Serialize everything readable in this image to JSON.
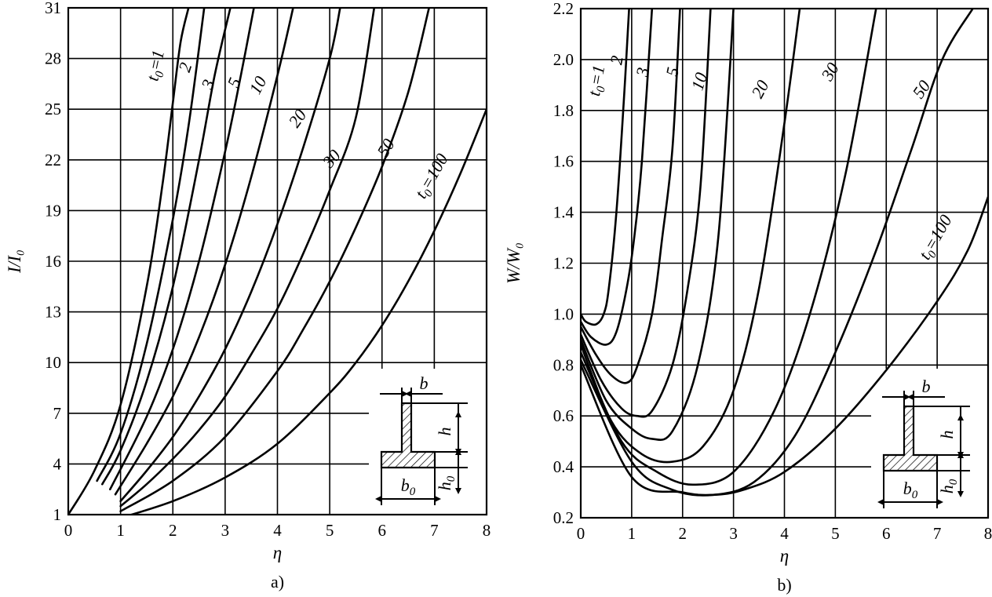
{
  "chart_data": [
    {
      "type": "line",
      "caption": "a)",
      "xlabel": "η",
      "ylabel": "I/I₀",
      "xlim": [
        0,
        8
      ],
      "ylim": [
        1,
        31
      ],
      "xticks": [
        0,
        1,
        2,
        3,
        4,
        5,
        6,
        7,
        8
      ],
      "yticks": [
        1,
        4,
        7,
        10,
        13,
        16,
        19,
        22,
        25,
        28,
        31
      ],
      "grid": true,
      "series": [
        {
          "name": "t₀=1",
          "label": "t₀=1",
          "x": [
            0,
            0.5,
            1,
            1.5,
            1.8,
            2.0,
            2.15,
            2.3
          ],
          "y": [
            1,
            3.6,
            7.5,
            14.5,
            20.5,
            25.4,
            29,
            31
          ]
        },
        {
          "name": "2",
          "label": "2",
          "x": [
            0.55,
            1,
            1.5,
            2,
            2.3,
            2.6
          ],
          "y": [
            3.0,
            5.8,
            11.1,
            18.5,
            24,
            31
          ]
        },
        {
          "name": "3",
          "label": "3",
          "x": [
            0.65,
            1,
            1.5,
            2,
            2.5,
            2.8,
            3.1
          ],
          "y": [
            2.8,
            4.8,
            8.9,
            14.5,
            22,
            27,
            31
          ]
        },
        {
          "name": "5",
          "label": "5",
          "x": [
            0.8,
            1.5,
            2,
            2.5,
            3,
            3.3,
            3.55
          ],
          "y": [
            2.5,
            6.8,
            10.8,
            16,
            22.5,
            27,
            31
          ]
        },
        {
          "name": "10",
          "label": "10",
          "x": [
            0.9,
            1.5,
            2,
            2.5,
            3,
            3.5,
            4.0,
            4.3
          ],
          "y": [
            2.2,
            5.2,
            8.0,
            11.5,
            15.8,
            21,
            27,
            31
          ]
        },
        {
          "name": "20",
          "label": "20",
          "x": [
            1,
            1.5,
            2,
            2.5,
            3,
            3.5,
            4,
            4.5,
            5.0,
            5.2
          ],
          "y": [
            1.8,
            3.6,
            5.6,
            8.0,
            10.8,
            14.2,
            18.2,
            22.8,
            28,
            31
          ]
        },
        {
          "name": "30",
          "label": "30",
          "x": [
            1,
            1.5,
            2,
            2.5,
            3,
            3.5,
            4,
            4.5,
            5,
            5.5,
            5.85
          ],
          "y": [
            1.5,
            2.8,
            4.3,
            6.0,
            8.0,
            10.5,
            13.2,
            16.5,
            20.2,
            24.5,
            31
          ]
        },
        {
          "name": "50",
          "label": "50",
          "x": [
            1,
            2,
            3,
            4,
            4.5,
            5,
            5.5,
            6,
            6.5,
            6.9
          ],
          "y": [
            1.2,
            3.0,
            5.6,
            9.5,
            12,
            14.8,
            18,
            21.6,
            26,
            31
          ]
        },
        {
          "name": "t₀=100",
          "label": "t₀=100",
          "x": [
            1,
            2,
            3,
            4,
            5,
            5.5,
            6,
            6.5,
            7,
            7.5,
            8
          ],
          "y": [
            0.8,
            1.8,
            3.2,
            5.2,
            8.2,
            10,
            12.2,
            14.8,
            17.8,
            21.2,
            25
          ]
        }
      ],
      "inset": {
        "labels": [
          "b",
          "h",
          "b₀",
          "h₀"
        ]
      }
    },
    {
      "type": "line",
      "caption": "b)",
      "xlabel": "η",
      "ylabel": "W/W₀",
      "xlim": [
        0,
        8
      ],
      "ylim": [
        0.2,
        2.2
      ],
      "xticks": [
        0,
        1,
        2,
        3,
        4,
        5,
        6,
        7,
        8
      ],
      "yticks": [
        "0.2",
        "0.4",
        "0.6",
        "0.8",
        "1.0",
        "1.2",
        "1.4",
        "1.6",
        "1.8",
        "2.0",
        "2.2"
      ],
      "grid": true,
      "series": [
        {
          "name": "t₀=1",
          "label": "t₀=1",
          "x": [
            0,
            0.1,
            0.3,
            0.45,
            0.55,
            0.7,
            0.85,
            0.95
          ],
          "y": [
            1.0,
            0.97,
            0.96,
            1.0,
            1.1,
            1.4,
            1.85,
            2.2
          ]
        },
        {
          "name": "2",
          "label": "2",
          "x": [
            0,
            0.2,
            0.5,
            0.7,
            0.9,
            1.05,
            1.2,
            1.4
          ],
          "y": [
            0.97,
            0.91,
            0.88,
            0.93,
            1.1,
            1.3,
            1.6,
            2.2
          ]
        },
        {
          "name": "3",
          "label": "3",
          "x": [
            0,
            0.3,
            0.6,
            0.9,
            1.1,
            1.4,
            1.6,
            1.8,
            1.95
          ],
          "y": [
            0.95,
            0.84,
            0.76,
            0.73,
            0.79,
            1.0,
            1.3,
            1.65,
            2.2
          ]
        },
        {
          "name": "5",
          "label": "5",
          "x": [
            0,
            0.4,
            0.8,
            1.1,
            1.4,
            1.8,
            2.1,
            2.35,
            2.55
          ],
          "y": [
            0.92,
            0.74,
            0.63,
            0.6,
            0.62,
            0.8,
            1.1,
            1.5,
            2.2
          ]
        },
        {
          "name": "10",
          "label": "10",
          "x": [
            0,
            0.5,
            1.0,
            1.4,
            1.8,
            2.3,
            2.7,
            3.0
          ],
          "y": [
            0.9,
            0.66,
            0.55,
            0.51,
            0.54,
            0.8,
            1.3,
            2.2
          ]
        },
        {
          "name": "20",
          "label": "20",
          "x": [
            0,
            0.6,
            1.2,
            1.8,
            2.4,
            3.0,
            3.5,
            4.0,
            4.3
          ],
          "y": [
            0.88,
            0.58,
            0.45,
            0.42,
            0.48,
            0.7,
            1.1,
            1.75,
            2.2
          ]
        },
        {
          "name": "30",
          "label": "30",
          "x": [
            0,
            0.8,
            1.5,
            2.2,
            3.0,
            3.8,
            4.5,
            5.2,
            5.8
          ],
          "y": [
            0.85,
            0.5,
            0.38,
            0.33,
            0.38,
            0.62,
            1.0,
            1.55,
            2.2
          ]
        },
        {
          "name": "50",
          "label": "50",
          "x": [
            0,
            1.0,
            1.8,
            2.6,
            3.4,
            4.2,
            5.0,
            5.8,
            6.5,
            7.1,
            7.7
          ],
          "y": [
            0.82,
            0.42,
            0.31,
            0.29,
            0.34,
            0.52,
            0.85,
            1.25,
            1.65,
            2.0,
            2.2
          ]
        },
        {
          "name": "t₀=100",
          "label": "t₀=100",
          "x": [
            0,
            1.0,
            2.0,
            2.6,
            3.2,
            4.0,
            5.0,
            6.0,
            7.0,
            7.6,
            8.0
          ],
          "y": [
            0.8,
            0.36,
            0.3,
            0.29,
            0.31,
            0.38,
            0.55,
            0.78,
            1.05,
            1.25,
            1.46
          ]
        }
      ],
      "inset": {
        "labels": [
          "b",
          "h",
          "b₀",
          "h₀"
        ]
      }
    }
  ]
}
